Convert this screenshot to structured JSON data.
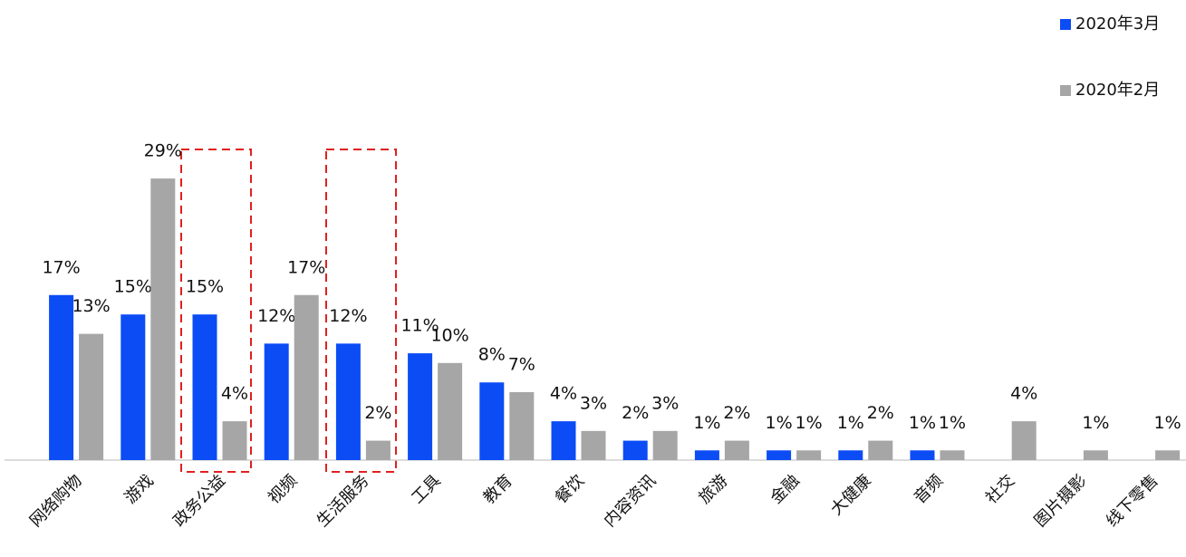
{
  "chart_data": {
    "type": "bar",
    "categories": [
      "网络购物",
      "游戏",
      "政务公益",
      "视频",
      "生活服务",
      "工具",
      "教育",
      "餐饮",
      "内容资讯",
      "旅游",
      "金融",
      "大健康",
      "音频",
      "社交",
      "图片摄影",
      "线下零售"
    ],
    "series": [
      {
        "name": "2020年3月",
        "color": "#0b4cf5",
        "values": [
          17,
          15,
          15,
          12,
          12,
          11,
          8,
          4,
          2,
          1,
          1,
          1,
          1,
          null,
          null,
          null
        ],
        "value_labels": [
          "17%",
          "15%",
          "15%",
          "12%",
          "12%",
          "11%",
          "8%",
          "4%",
          "2%",
          "1%",
          "1%",
          "1%",
          "1%",
          null,
          null,
          null
        ]
      },
      {
        "name": "2020年2月",
        "color": "#a6a6a6",
        "values": [
          13,
          29,
          4,
          17,
          2,
          10,
          7,
          3,
          3,
          2,
          1,
          2,
          1,
          4,
          1,
          1
        ],
        "value_labels": [
          "13%",
          "29%",
          "4%",
          "17%",
          "2%",
          "10%",
          "7%",
          "3%",
          "3%",
          "2%",
          "1%",
          "2%",
          "1%",
          "4%",
          "1%",
          "1%"
        ]
      }
    ]
  }
}
